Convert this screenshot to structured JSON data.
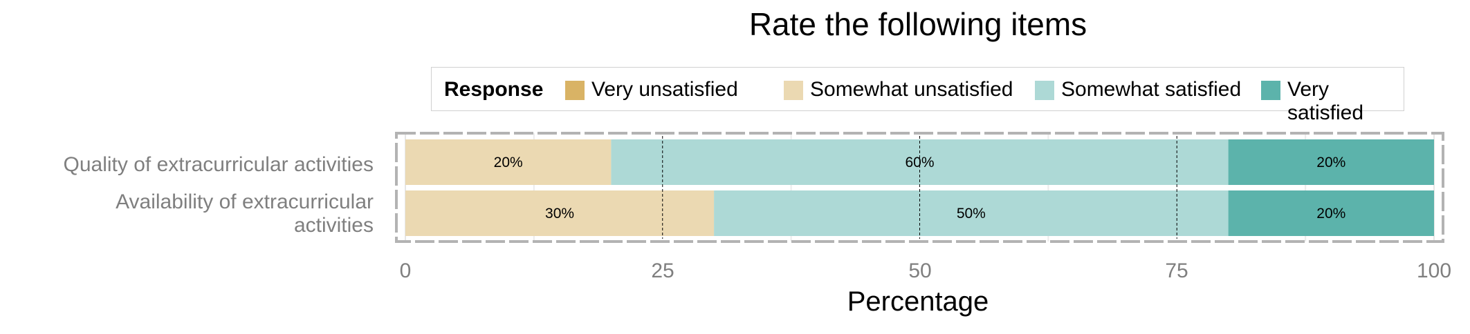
{
  "chart_data": {
    "type": "bar",
    "orientation": "horizontal",
    "stacked": true,
    "title": "Rate the following items",
    "xlabel": "Percentage",
    "ylabel": "",
    "xlim": [
      0,
      100
    ],
    "xticks": [
      "0",
      "25",
      "50",
      "75",
      "100"
    ],
    "legend": {
      "title": "Response",
      "placement": "top",
      "entries": [
        "Very unsatisfied",
        "Somewhat unsatisfied",
        "Somewhat satisfied",
        "Very satisfied"
      ]
    },
    "categories": [
      "Quality of extracurricular activities",
      "Availability of extracurricular activities"
    ],
    "series": [
      {
        "name": "Very unsatisfied",
        "color": "#D9B365",
        "values": [
          0,
          0
        ],
        "labels": [
          "",
          ""
        ]
      },
      {
        "name": "Somewhat unsatisfied",
        "color": "#EBD9B2",
        "values": [
          20,
          30
        ],
        "labels": [
          "20%",
          "30%"
        ]
      },
      {
        "name": "Somewhat satisfied",
        "color": "#ADD9D6",
        "values": [
          60,
          50
        ],
        "labels": [
          "60%",
          "50%"
        ]
      },
      {
        "name": "Very satisfied",
        "color": "#5CB3AB",
        "values": [
          20,
          20
        ],
        "labels": [
          "20%",
          "20%"
        ]
      }
    ],
    "grid": true
  }
}
